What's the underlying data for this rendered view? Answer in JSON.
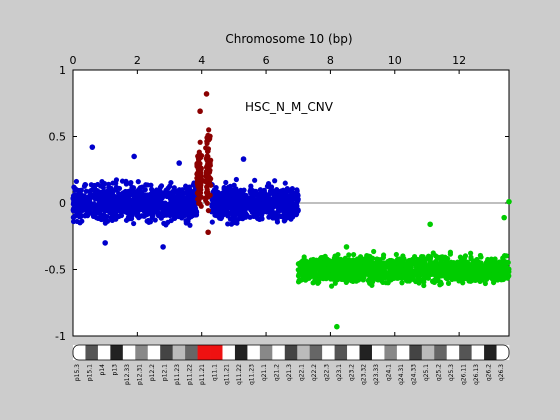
{
  "chart_data": {
    "type": "scatter",
    "title": "Chromosome 10 (bp)",
    "annotation": "HSC_N_M_CNV",
    "xlim": [
      0,
      13.55
    ],
    "ylim": [
      -1,
      1
    ],
    "x_ticks": [
      0,
      2,
      4,
      6,
      8,
      10,
      12
    ],
    "y_ticks": [
      1,
      0.5,
      0,
      -0.5,
      -1
    ],
    "x_tick_labels": [
      "0",
      "2",
      "4",
      "6",
      "8",
      "10",
      "12"
    ],
    "y_tick_labels": [
      "1",
      "0.5",
      "0",
      "-0.5",
      "-1"
    ],
    "axis_position": "top",
    "baseline": 0,
    "colors": {
      "background": "#cccccc",
      "plot": "#ffffff",
      "blue": "#0000cc",
      "red": "#8b0000",
      "green": "#00cc00"
    },
    "series": [
      {
        "color": "blue",
        "segments": [
          {
            "x": [
              0,
              3.85
            ],
            "mean": 0.0,
            "spread": 0.13
          },
          {
            "x": [
              4.3,
              7.0
            ],
            "mean": 0.0,
            "spread": 0.12
          }
        ],
        "outliers": [
          [
            0.6,
            0.42
          ],
          [
            1.9,
            0.35
          ],
          [
            2.8,
            -0.33
          ],
          [
            5.3,
            0.33
          ],
          [
            3.3,
            0.3
          ],
          [
            1.0,
            -0.3
          ]
        ]
      },
      {
        "color": "red",
        "segments": [
          {
            "x": [
              3.85,
              4.0
            ],
            "mean": 0.2,
            "spread": 0.18
          },
          {
            "x": [
              4.12,
              4.28
            ],
            "mean": 0.25,
            "spread": 0.3
          }
        ],
        "outliers": [
          [
            4.15,
            0.82
          ],
          [
            3.95,
            0.69
          ],
          [
            4.2,
            -0.22
          ]
        ]
      },
      {
        "color": "green",
        "segments": [
          {
            "x": [
              7.0,
              13.55
            ],
            "mean": -0.5,
            "spread": 0.09
          }
        ],
        "outliers": [
          [
            8.2,
            -0.93
          ],
          [
            13.4,
            -0.11
          ],
          [
            13.55,
            0.01
          ],
          [
            11.1,
            -0.16
          ],
          [
            8.5,
            -0.33
          ]
        ]
      }
    ],
    "ideogram_bands": [
      "p15.3",
      "p15.1",
      "p14",
      "p13",
      "p12.33",
      "p12.31",
      "p12.2",
      "p12.1",
      "p11.23",
      "p11.22",
      "p11.21",
      "q11.1",
      "q11.21",
      "q11.22",
      "q11.23",
      "q21.1",
      "q21.2",
      "q21.3",
      "q22.1",
      "q22.2",
      "q22.3",
      "q23.1",
      "q23.2",
      "q23.32",
      "q23.33",
      "q24.1",
      "q24.31",
      "q24.33",
      "q25.1",
      "q25.2",
      "q25.3",
      "q26.11",
      "q26.13",
      "q26.2",
      "q26.3"
    ]
  }
}
